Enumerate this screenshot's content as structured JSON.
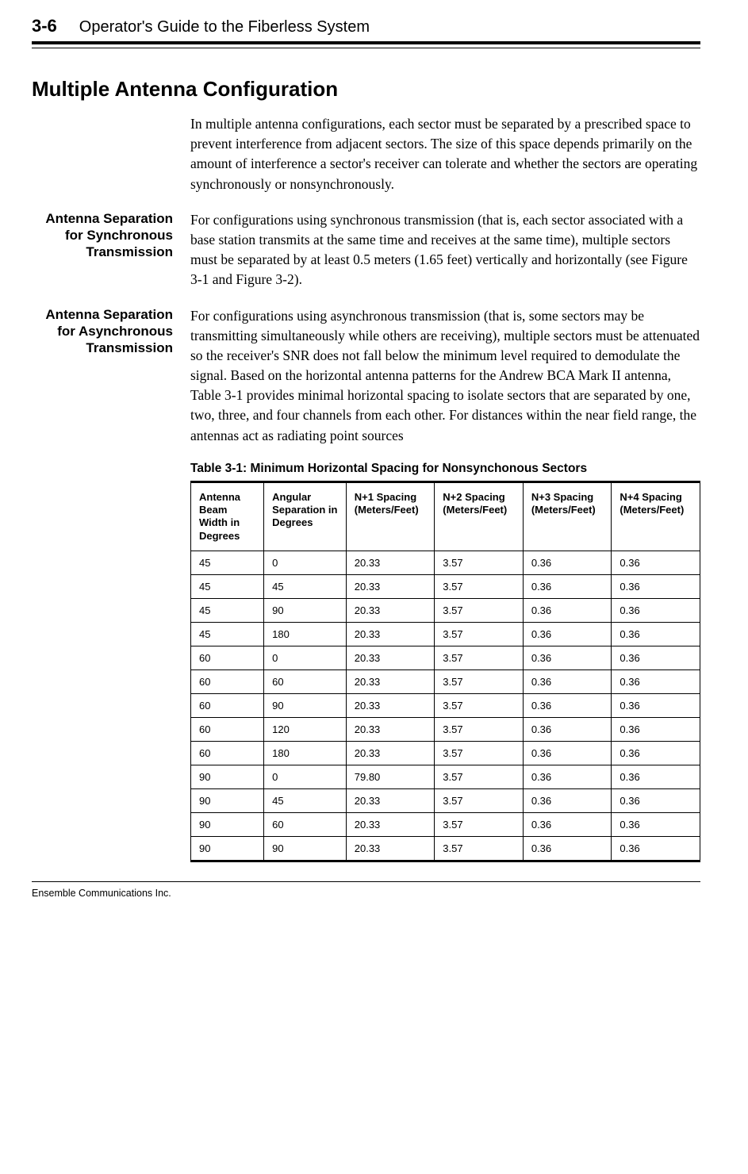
{
  "header": {
    "page_number": "3-6",
    "guide_title": "Operator's Guide to the Fiberless System"
  },
  "section_title": "Multiple Antenna Configuration",
  "intro": "In multiple antenna configurations, each sector must be separated by a prescribed space to prevent interference from adjacent sectors. The size of this space depends primarily on the amount of interference a sector's receiver can tolerate and whether the sectors are operating synchronously or nonsynchronously.",
  "blocks": [
    {
      "label": "Antenna Separation for Synchronous Transmission",
      "text": "For configurations using synchronous transmission (that is, each sector associated with a base station transmits at the same time and receives at the same time), multiple sectors must be separated by at least 0.5 meters (1.65 feet) vertically and horizontally (see Figure 3-1 and Figure 3-2)."
    },
    {
      "label": "Antenna Separation for Asynchronous Transmission",
      "text": "For configurations using asynchronous transmission (that is, some sectors may be transmitting simultaneously while others are receiving), multiple sectors must be attenuated so the receiver's SNR does not fall below the minimum level required to demodulate the signal. Based on the horizontal antenna patterns for the Andrew BCA Mark II antenna, Table 3-1 provides minimal horizontal spacing to isolate sectors that are separated by one, two, three, and four channels from each other. For distances within the near field range, the antennas act as radiating point sources"
    }
  ],
  "table": {
    "caption": "Table 3-1: Minimum Horizontal Spacing for Nonsynchonous Sectors",
    "columns": [
      "Antenna Beam Width in Degrees",
      "Angular Separation in Degrees",
      "N+1 Spacing (Meters/Feet)",
      "N+2 Spacing (Meters/Feet)",
      "N+3 Spacing (Meters/Feet)",
      "N+4 Spacing (Meters/Feet)"
    ],
    "rows": [
      [
        "45",
        "0",
        "20.33",
        "3.57",
        "0.36",
        "0.36"
      ],
      [
        "45",
        "45",
        "20.33",
        "3.57",
        "0.36",
        "0.36"
      ],
      [
        "45",
        "90",
        "20.33",
        "3.57",
        "0.36",
        "0.36"
      ],
      [
        "45",
        "180",
        "20.33",
        "3.57",
        "0.36",
        "0.36"
      ],
      [
        "60",
        "0",
        "20.33",
        "3.57",
        "0.36",
        "0.36"
      ],
      [
        "60",
        "60",
        "20.33",
        "3.57",
        "0.36",
        "0.36"
      ],
      [
        "60",
        "90",
        "20.33",
        "3.57",
        "0.36",
        "0.36"
      ],
      [
        "60",
        "120",
        "20.33",
        "3.57",
        "0.36",
        "0.36"
      ],
      [
        "60",
        "180",
        "20.33",
        "3.57",
        "0.36",
        "0.36"
      ],
      [
        "90",
        "0",
        "79.80",
        "3.57",
        "0.36",
        "0.36"
      ],
      [
        "90",
        "45",
        "20.33",
        "3.57",
        "0.36",
        "0.36"
      ],
      [
        "90",
        "60",
        "20.33",
        "3.57",
        "0.36",
        "0.36"
      ],
      [
        "90",
        "90",
        "20.33",
        "3.57",
        "0.36",
        "0.36"
      ]
    ]
  },
  "footer": "Ensemble Communications Inc."
}
